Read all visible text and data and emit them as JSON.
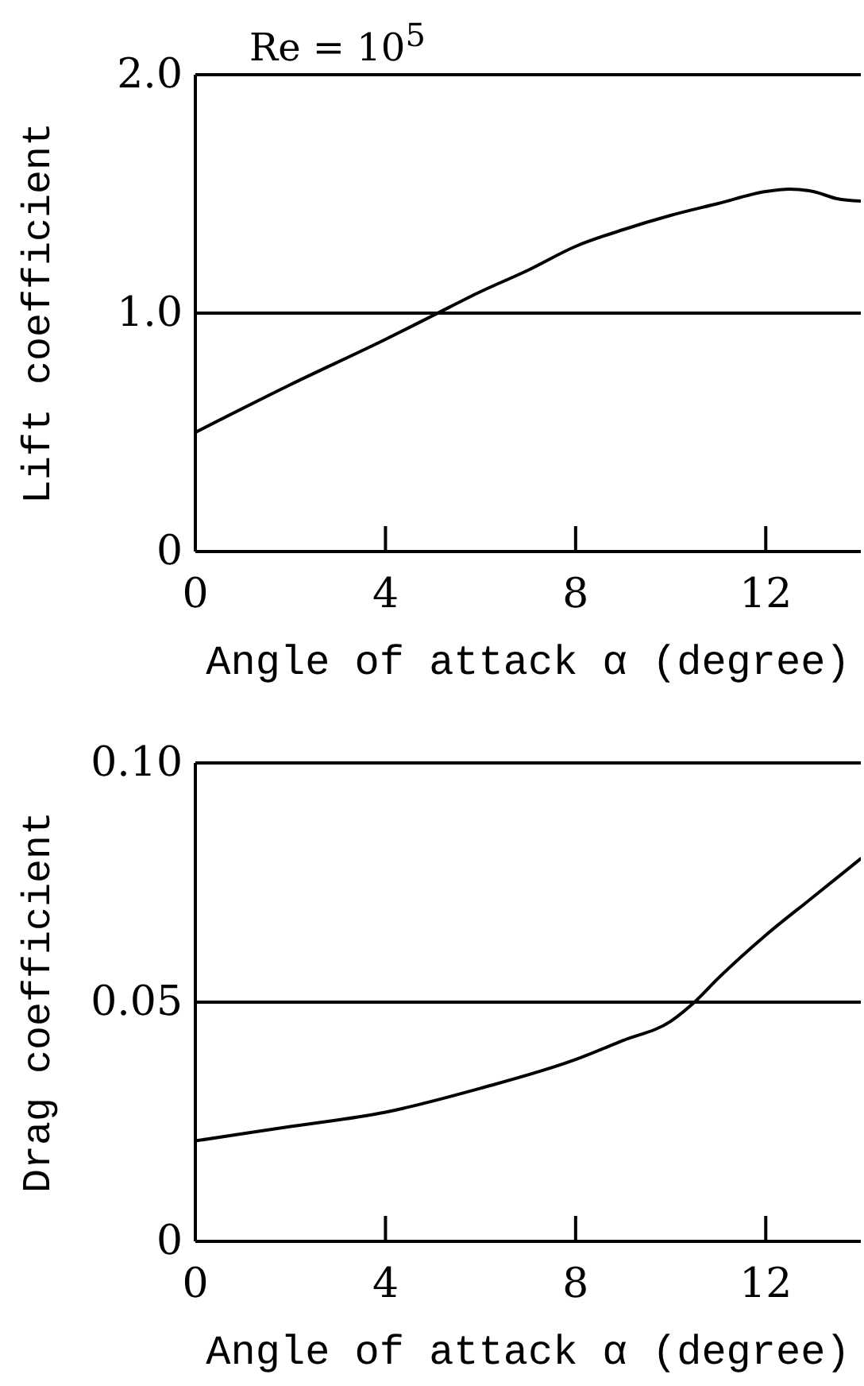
{
  "chart_data": [
    {
      "type": "line",
      "xlabel": "Angle of attack α (degree)",
      "ylabel": "Lift coefficient",
      "annotations": [
        "Re = 10$^{5}$"
      ],
      "x": [
        0,
        2,
        4,
        5,
        6,
        7,
        8,
        9,
        10,
        11,
        12,
        12.5,
        13,
        13.5,
        14
      ],
      "values": [
        0.5,
        0.7,
        0.89,
        0.99,
        1.09,
        1.18,
        1.28,
        1.35,
        1.41,
        1.46,
        1.51,
        1.52,
        1.51,
        1.48,
        1.47
      ],
      "color": "#000000",
      "xlim": [
        0,
        14
      ],
      "xticks": [
        0,
        4,
        8,
        12
      ],
      "ylim": [
        0,
        2
      ],
      "yticks": [
        0,
        {
          "value": 1,
          "label": "1.0"
        },
        {
          "value": 2,
          "label": "2.0"
        }
      ],
      "grid": "y",
      "marker": "none",
      "line_style": "solid"
    },
    {
      "type": "line",
      "xlabel": "Angle of attack α (degree)",
      "ylabel": "Drag coefficient",
      "x": [
        0,
        2,
        4,
        6,
        8,
        9,
        10,
        10.5,
        11,
        12,
        13,
        14
      ],
      "values": [
        0.021,
        0.024,
        0.027,
        0.032,
        0.038,
        0.042,
        0.046,
        0.05,
        0.055,
        0.064,
        0.072,
        0.08
      ],
      "color": "#000000",
      "xlim": [
        0,
        14
      ],
      "xticks": [
        0,
        4,
        8,
        12
      ],
      "ylim": [
        0,
        0.1
      ],
      "yticks": [
        0,
        {
          "value": 0.05,
          "label": "0.05"
        },
        {
          "value": 0.1,
          "label": "0.10"
        }
      ],
      "grid": "y",
      "marker": "none",
      "line_style": "solid"
    }
  ]
}
